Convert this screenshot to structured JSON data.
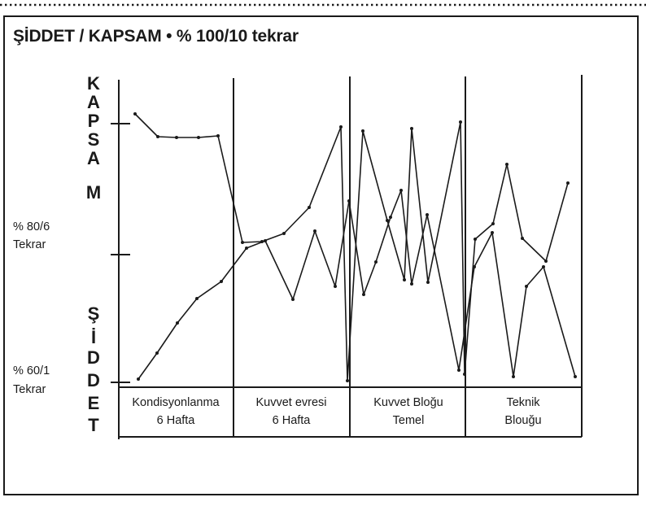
{
  "title": "ŞİDDET / KAPSAM • % 100/10 tekrar",
  "chart_data": {
    "type": "line",
    "vertical_labels": {
      "top": "KAPSAM",
      "bottom": "ŞİDDET"
    },
    "y_levels": [
      {
        "line1": "% 80/6",
        "line2": "Tekrar"
      },
      {
        "line1": "% 60/1",
        "line2": "Tekrar"
      }
    ],
    "phases": [
      {
        "line1": "Kondisyonlanma",
        "line2": "6 Hafta"
      },
      {
        "line1": "Kuvvet evresi",
        "line2": "6 Hafta"
      },
      {
        "line1": "Kuvvet Bloğu",
        "line2": "Temel"
      },
      {
        "line1": "Teknik",
        "line2": "Blouğu"
      }
    ],
    "series": [
      {
        "key": "kapsam",
        "points": [
          [
            166,
            140
          ],
          [
            194,
            168
          ],
          [
            217,
            169
          ],
          [
            244,
            169
          ],
          [
            268,
            167
          ],
          [
            298,
            298
          ],
          [
            322,
            297
          ],
          [
            349,
            287
          ],
          [
            380,
            255
          ],
          [
            419,
            156
          ],
          [
            427,
            468
          ],
          [
            446,
            161
          ],
          [
            476,
            271
          ],
          [
            497,
            344
          ],
          [
            506,
            158
          ],
          [
            526,
            347
          ],
          [
            566,
            150
          ],
          [
            571,
            460
          ],
          [
            584,
            294
          ],
          [
            606,
            275
          ],
          [
            623,
            202
          ],
          [
            642,
            293
          ],
          [
            671,
            321
          ],
          [
            698,
            225
          ]
        ]
      },
      {
        "key": "siddet",
        "points": [
          [
            170,
            466
          ],
          [
            193,
            434
          ],
          [
            218,
            397
          ],
          [
            242,
            367
          ],
          [
            272,
            346
          ],
          [
            303,
            305
          ],
          [
            326,
            296
          ],
          [
            360,
            368
          ],
          [
            387,
            284
          ],
          [
            412,
            352
          ],
          [
            429,
            247
          ],
          [
            447,
            362
          ],
          [
            462,
            322
          ],
          [
            480,
            267
          ],
          [
            493,
            234
          ],
          [
            506,
            349
          ],
          [
            525,
            264
          ],
          [
            564,
            455
          ],
          [
            583,
            328
          ],
          [
            605,
            286
          ],
          [
            631,
            463
          ],
          [
            647,
            352
          ],
          [
            668,
            328
          ],
          [
            707,
            463
          ]
        ]
      }
    ]
  }
}
